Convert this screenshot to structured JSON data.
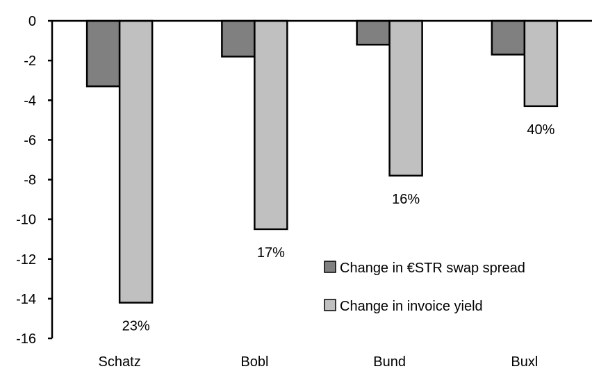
{
  "chart_data": {
    "type": "bar",
    "title": "",
    "xlabel": "",
    "ylabel": "",
    "categories": [
      "Schatz",
      "Bobl",
      "Bund",
      "Buxl"
    ],
    "series": [
      {
        "name": "Change in €STR swap spread",
        "values": [
          -3.3,
          -1.8,
          -1.2,
          -1.7
        ],
        "color": "#808080"
      },
      {
        "name": "Change in invoice yield",
        "values": [
          -14.2,
          -10.5,
          -7.8,
          -4.3
        ],
        "color": "#c0c0c0"
      }
    ],
    "annotations": [
      "23%",
      "17%",
      "16%",
      "40%"
    ],
    "ylim": [
      -16,
      0
    ],
    "yticks": [
      0,
      -2,
      -4,
      -6,
      -8,
      -10,
      -12,
      -14,
      -16
    ],
    "grid": false,
    "legend": "bottom-right"
  }
}
